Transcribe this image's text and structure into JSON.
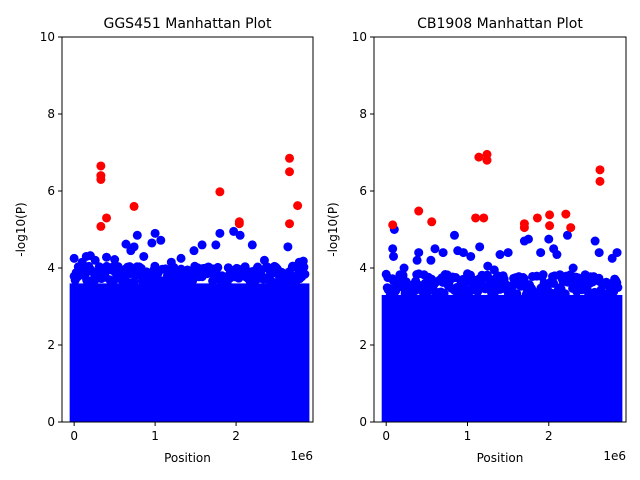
{
  "chart_data": [
    {
      "type": "scatter",
      "title": "GGS451 Manhattan Plot",
      "xlabel": "Position",
      "ylabel": "-log10(P)",
      "x_offset_text": "1e6",
      "xlim": [
        -150000,
        2950000
      ],
      "ylim": [
        0,
        10
      ],
      "x_ticks": [
        0,
        1000000,
        2000000
      ],
      "x_tick_labels": [
        "0",
        "1",
        "2"
      ],
      "y_ticks": [
        0,
        2,
        4,
        6,
        8,
        10
      ],
      "y_tick_labels": [
        "0",
        "2",
        "4",
        "6",
        "8",
        "10"
      ],
      "grid": false,
      "colors": {
        "background_hits": "#0000ff",
        "significant_hits": "#ff0000"
      },
      "dense_band": {
        "x_range": [
          0,
          2850000
        ],
        "y_max": 3.6
      },
      "series": [
        {
          "color": "#0000ff",
          "points": [
            [
              0,
              4.25
            ],
            [
              100000,
              4.15
            ],
            [
              150000,
              4.3
            ],
            [
              200000,
              4.32
            ],
            [
              260000,
              4.2
            ],
            [
              400000,
              4.28
            ],
            [
              500000,
              4.22
            ],
            [
              640000,
              4.62
            ],
            [
              700000,
              4.45
            ],
            [
              740000,
              4.55
            ],
            [
              780000,
              4.85
            ],
            [
              860000,
              4.3
            ],
            [
              960000,
              4.65
            ],
            [
              1000000,
              4.9
            ],
            [
              1070000,
              4.72
            ],
            [
              1200000,
              4.15
            ],
            [
              1320000,
              4.25
            ],
            [
              1480000,
              4.45
            ],
            [
              1580000,
              4.6
            ],
            [
              1750000,
              4.6
            ],
            [
              1800000,
              4.9
            ],
            [
              1970000,
              4.95
            ],
            [
              2050000,
              4.85
            ],
            [
              2200000,
              4.6
            ],
            [
              2350000,
              4.2
            ],
            [
              2500000,
              4.0
            ],
            [
              2640000,
              4.55
            ],
            [
              2780000,
              4.15
            ],
            [
              2830000,
              4.18
            ],
            [
              2700000,
              4.05
            ]
          ]
        },
        {
          "color": "#ff0000",
          "points": [
            [
              330000,
              6.65
            ],
            [
              330000,
              6.4
            ],
            [
              330000,
              6.3
            ],
            [
              330000,
              5.08
            ],
            [
              400000,
              5.3
            ],
            [
              740000,
              5.6
            ],
            [
              1800000,
              5.98
            ],
            [
              2040000,
              5.2
            ],
            [
              2040000,
              5.15
            ],
            [
              2660000,
              6.85
            ],
            [
              2660000,
              6.5
            ],
            [
              2660000,
              5.15
            ],
            [
              2760000,
              5.62
            ]
          ]
        }
      ]
    },
    {
      "type": "scatter",
      "title": "CB1908 Manhattan Plot",
      "xlabel": "Position",
      "ylabel": "-log10(P)",
      "x_offset_text": "1e6",
      "xlim": [
        -150000,
        2950000
      ],
      "ylim": [
        0,
        10
      ],
      "x_ticks": [
        0,
        1000000,
        2000000
      ],
      "x_tick_labels": [
        "0",
        "1",
        "2"
      ],
      "y_ticks": [
        0,
        2,
        4,
        6,
        8,
        10
      ],
      "y_tick_labels": [
        "0",
        "2",
        "4",
        "6",
        "8",
        "10"
      ],
      "grid": false,
      "colors": {
        "background_hits": "#0000ff",
        "significant_hits": "#ff0000"
      },
      "dense_band": {
        "x_range": [
          0,
          2850000
        ],
        "y_max": 3.3
      },
      "series": [
        {
          "color": "#0000ff",
          "points": [
            [
              20000,
              3.75
            ],
            [
              100000,
              5.0
            ],
            [
              80000,
              4.5
            ],
            [
              90000,
              4.3
            ],
            [
              220000,
              4.0
            ],
            [
              380000,
              4.2
            ],
            [
              400000,
              4.4
            ],
            [
              550000,
              4.2
            ],
            [
              600000,
              4.5
            ],
            [
              700000,
              4.4
            ],
            [
              840000,
              4.85
            ],
            [
              880000,
              4.45
            ],
            [
              950000,
              4.4
            ],
            [
              1000000,
              3.85
            ],
            [
              1040000,
              4.3
            ],
            [
              1150000,
              4.55
            ],
            [
              1250000,
              4.05
            ],
            [
              1330000,
              3.95
            ],
            [
              1400000,
              4.35
            ],
            [
              1500000,
              4.4
            ],
            [
              1700000,
              4.7
            ],
            [
              1750000,
              4.75
            ],
            [
              1900000,
              4.4
            ],
            [
              2000000,
              4.75
            ],
            [
              2060000,
              4.5
            ],
            [
              2100000,
              4.35
            ],
            [
              2230000,
              4.85
            ],
            [
              2300000,
              4.0
            ],
            [
              2570000,
              4.7
            ],
            [
              2620000,
              4.4
            ],
            [
              2780000,
              4.25
            ],
            [
              2840000,
              4.4
            ]
          ]
        },
        {
          "color": "#ff0000",
          "points": [
            [
              80000,
              5.12
            ],
            [
              400000,
              5.48
            ],
            [
              560000,
              5.2
            ],
            [
              1100000,
              5.3
            ],
            [
              1140000,
              6.88
            ],
            [
              1200000,
              5.3
            ],
            [
              1240000,
              6.95
            ],
            [
              1240000,
              6.8
            ],
            [
              1700000,
              5.15
            ],
            [
              1700000,
              5.05
            ],
            [
              1860000,
              5.3
            ],
            [
              2010000,
              5.38
            ],
            [
              2010000,
              5.1
            ],
            [
              2210000,
              5.4
            ],
            [
              2270000,
              5.05
            ],
            [
              2630000,
              6.55
            ],
            [
              2630000,
              6.25
            ]
          ]
        }
      ]
    }
  ]
}
